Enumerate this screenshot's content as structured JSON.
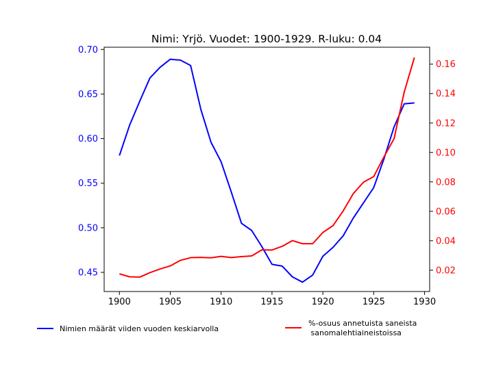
{
  "chart_data": {
    "type": "line",
    "title": "Nimi: Yrjö. Vuodet: 1900-1929. R-luku: 0.04",
    "xlabel": "",
    "xlim": [
      1898.5,
      1930.5
    ],
    "x_ticks": [
      1900,
      1905,
      1910,
      1915,
      1920,
      1925,
      1930
    ],
    "x_tick_labels": [
      "1900",
      "1905",
      "1910",
      "1915",
      "1920",
      "1925",
      "1930"
    ],
    "x": [
      1900,
      1901,
      1902,
      1903,
      1904,
      1905,
      1906,
      1907,
      1908,
      1909,
      1910,
      1911,
      1912,
      1913,
      1914,
      1915,
      1916,
      1917,
      1918,
      1919,
      1920,
      1921,
      1922,
      1923,
      1924,
      1925,
      1926,
      1927,
      1928,
      1929
    ],
    "y_left": {
      "label": "",
      "color": "#0000ff",
      "lim": [
        0.4285,
        0.7025
      ],
      "ticks": [
        0.45,
        0.5,
        0.55,
        0.6,
        0.65,
        0.7
      ],
      "tick_labels": [
        "0.45",
        "0.50",
        "0.55",
        "0.60",
        "0.65",
        "0.70"
      ]
    },
    "y_right": {
      "label": "",
      "color": "#ff0000",
      "lim": [
        0.0055,
        0.1715
      ],
      "ticks": [
        0.02,
        0.04,
        0.06,
        0.08,
        0.1,
        0.12,
        0.14,
        0.16
      ],
      "tick_labels": [
        "0.02",
        "0.04",
        "0.06",
        "0.08",
        "0.10",
        "0.12",
        "0.14",
        "0.16"
      ]
    },
    "series": [
      {
        "name": "Nimien määrät viiden vuoden keskiarvolla",
        "axis": "left",
        "color": "#0000ff",
        "values": [
          0.581,
          0.615,
          0.642,
          0.668,
          0.68,
          0.689,
          0.688,
          0.682,
          0.633,
          0.596,
          0.574,
          0.54,
          0.505,
          0.497,
          0.479,
          0.459,
          0.457,
          0.445,
          0.439,
          0.447,
          0.468,
          0.478,
          0.491,
          0.511,
          0.528,
          0.545,
          0.577,
          0.613,
          0.639,
          0.64
        ]
      },
      {
        "name": "%-osuus annetuista saneista\n sanomalehtiaineistoissa",
        "axis": "right",
        "color": "#ff0000",
        "values": [
          0.0175,
          0.0155,
          0.0153,
          0.0183,
          0.0208,
          0.0229,
          0.0267,
          0.0285,
          0.0287,
          0.0284,
          0.0294,
          0.0286,
          0.0292,
          0.0297,
          0.0338,
          0.0337,
          0.0362,
          0.0401,
          0.038,
          0.038,
          0.0456,
          0.0503,
          0.0603,
          0.0721,
          0.0798,
          0.0836,
          0.0969,
          0.1093,
          0.141,
          0.1645
        ]
      }
    ],
    "legend": {
      "placement": "bottom",
      "entries": [
        {
          "label_lines": [
            "Nimien määrät viiden vuoden keskiarvolla"
          ],
          "color": "#0000ff"
        },
        {
          "label_lines": [
            "%-osuus annetuista saneista",
            " sanomalehtiaineistoissa"
          ],
          "color": "#ff0000"
        }
      ]
    },
    "grid": false
  }
}
